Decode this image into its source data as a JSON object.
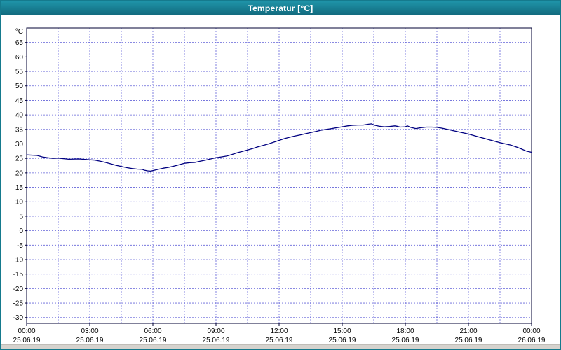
{
  "window": {
    "title": "Temperatur [°C]"
  },
  "colors": {
    "titlebar_bg": "#157a8d",
    "titlebar_text": "#ffffff",
    "border": "#157a8d",
    "plot_bg": "#ffffff",
    "grid": "#4a4ad2",
    "frame": "#000033",
    "line": "#000080",
    "tick_text": "#000000"
  },
  "chart_data": {
    "type": "line",
    "title": "Temperatur [°C]",
    "ylabel": "°C",
    "xlabel": "",
    "ylim": [
      -32,
      70
    ],
    "ytick_min": -30,
    "ytick_max": 65,
    "ytick_step": 5,
    "x_hours": [
      0,
      24
    ],
    "grid_x_step_hours": 1.5,
    "grid": "dashed",
    "legend": "none",
    "xticks": [
      {
        "hour": 0,
        "time": "00:00",
        "date": "25.06.19"
      },
      {
        "hour": 3,
        "time": "03:00",
        "date": "25.06.19"
      },
      {
        "hour": 6,
        "time": "06:00",
        "date": "25.06.19"
      },
      {
        "hour": 9,
        "time": "09:00",
        "date": "25.06.19"
      },
      {
        "hour": 12,
        "time": "12:00",
        "date": "25.06.19"
      },
      {
        "hour": 15,
        "time": "15:00",
        "date": "25.06.19"
      },
      {
        "hour": 18,
        "time": "18:00",
        "date": "25.06.19"
      },
      {
        "hour": 21,
        "time": "21:00",
        "date": "25.06.19"
      },
      {
        "hour": 24,
        "time": "00:00",
        "date": "26.06.19"
      }
    ],
    "series": [
      {
        "name": "Temperatur",
        "color": "#000080",
        "points": [
          [
            0,
            26.2
          ],
          [
            0.5,
            26.0
          ],
          [
            0.75,
            25.5
          ],
          [
            1.0,
            25.2
          ],
          [
            1.25,
            25.0
          ],
          [
            1.5,
            25.1
          ],
          [
            2.0,
            24.7
          ],
          [
            2.5,
            24.8
          ],
          [
            3.0,
            24.5
          ],
          [
            3.25,
            24.4
          ],
          [
            3.5,
            24.0
          ],
          [
            3.75,
            23.6
          ],
          [
            4.0,
            23.1
          ],
          [
            4.25,
            22.6
          ],
          [
            4.5,
            22.2
          ],
          [
            4.75,
            21.8
          ],
          [
            5.0,
            21.5
          ],
          [
            5.25,
            21.3
          ],
          [
            5.5,
            21.2
          ],
          [
            5.6,
            20.9
          ],
          [
            5.75,
            20.7
          ],
          [
            5.9,
            20.6
          ],
          [
            6.0,
            20.8
          ],
          [
            6.25,
            21.2
          ],
          [
            6.5,
            21.6
          ],
          [
            6.75,
            21.9
          ],
          [
            7.0,
            22.3
          ],
          [
            7.25,
            22.8
          ],
          [
            7.5,
            23.3
          ],
          [
            7.75,
            23.5
          ],
          [
            8.0,
            23.6
          ],
          [
            8.25,
            24.0
          ],
          [
            8.5,
            24.4
          ],
          [
            8.75,
            24.8
          ],
          [
            9.0,
            25.2
          ],
          [
            9.25,
            25.5
          ],
          [
            9.5,
            25.8
          ],
          [
            9.75,
            26.3
          ],
          [
            10.0,
            26.9
          ],
          [
            10.25,
            27.4
          ],
          [
            10.5,
            27.9
          ],
          [
            10.75,
            28.4
          ],
          [
            11.0,
            29.0
          ],
          [
            11.25,
            29.5
          ],
          [
            11.5,
            30.0
          ],
          [
            11.75,
            30.6
          ],
          [
            12.0,
            31.2
          ],
          [
            12.25,
            31.8
          ],
          [
            12.5,
            32.3
          ],
          [
            12.75,
            32.7
          ],
          [
            13.0,
            33.1
          ],
          [
            13.25,
            33.5
          ],
          [
            13.5,
            33.9
          ],
          [
            13.75,
            34.3
          ],
          [
            14.0,
            34.7
          ],
          [
            14.25,
            35.0
          ],
          [
            14.5,
            35.3
          ],
          [
            14.75,
            35.6
          ],
          [
            15.0,
            35.9
          ],
          [
            15.25,
            36.2
          ],
          [
            15.5,
            36.4
          ],
          [
            15.75,
            36.5
          ],
          [
            16.0,
            36.5
          ],
          [
            16.25,
            36.8
          ],
          [
            16.4,
            36.9
          ],
          [
            16.5,
            36.5
          ],
          [
            16.75,
            36.1
          ],
          [
            17.0,
            35.9
          ],
          [
            17.25,
            36.0
          ],
          [
            17.5,
            36.2
          ],
          [
            17.6,
            36.1
          ],
          [
            17.75,
            35.8
          ],
          [
            18.0,
            35.9
          ],
          [
            18.1,
            36.2
          ],
          [
            18.25,
            35.7
          ],
          [
            18.5,
            35.3
          ],
          [
            18.75,
            35.6
          ],
          [
            19.0,
            35.8
          ],
          [
            19.25,
            35.8
          ],
          [
            19.5,
            35.7
          ],
          [
            19.75,
            35.4
          ],
          [
            20.0,
            35.0
          ],
          [
            20.25,
            34.6
          ],
          [
            20.5,
            34.2
          ],
          [
            20.75,
            33.8
          ],
          [
            21.0,
            33.4
          ],
          [
            21.25,
            32.9
          ],
          [
            21.5,
            32.4
          ],
          [
            21.75,
            31.9
          ],
          [
            22.0,
            31.4
          ],
          [
            22.25,
            30.9
          ],
          [
            22.5,
            30.4
          ],
          [
            22.75,
            30.0
          ],
          [
            23.0,
            29.6
          ],
          [
            23.25,
            29.0
          ],
          [
            23.5,
            28.3
          ],
          [
            23.75,
            27.5
          ],
          [
            24.0,
            27.1
          ]
        ]
      }
    ]
  }
}
